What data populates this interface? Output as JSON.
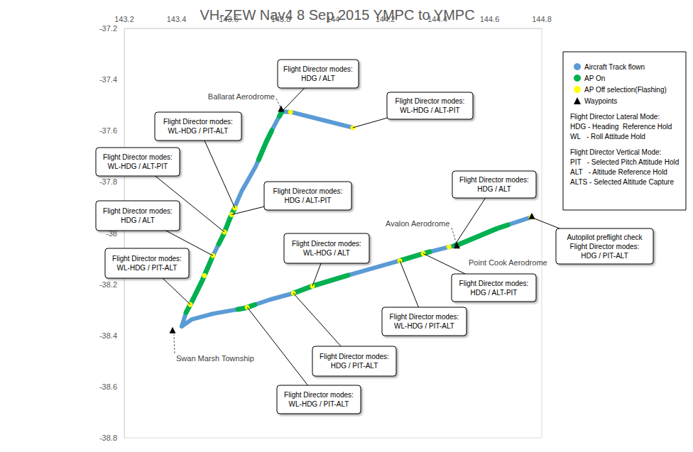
{
  "chart_data": {
    "type": "scatter",
    "title": "VH-ZEW Nav4 8 Sep 2015 YMPC to YMPC",
    "xlim": [
      143.2,
      144.8
    ],
    "xticks": [
      143.2,
      143.4,
      143.6,
      143.8,
      144,
      144.2,
      144.4,
      144.6,
      144.8
    ],
    "ylim": [
      -38.8,
      -37.2
    ],
    "yticks": [
      -38.8,
      -38.6,
      -38.4,
      -38.2,
      -38,
      -37.8,
      -37.6,
      -37.4,
      -37.2
    ],
    "grid": false,
    "series": [
      {
        "name": "Aircraft Track flown",
        "type": "line",
        "color": "#5b9bd5",
        "marker": "circle",
        "x": [
          144.759,
          144.629,
          144.479,
          144.433,
          144.356,
          144.248,
          144.057,
          143.921,
          143.848,
          143.758,
          143.663,
          143.54,
          143.459,
          143.42,
          143.437,
          143.459,
          143.499,
          143.54,
          143.581,
          143.608,
          143.649,
          143.703,
          143.744,
          143.771,
          143.804,
          143.839,
          143.948,
          144.076
        ],
        "values": [
          -37.938,
          -37.982,
          -38.046,
          -38.057,
          -38.077,
          -38.11,
          -38.165,
          -38.207,
          -38.235,
          -38.26,
          -38.293,
          -38.315,
          -38.337,
          -38.365,
          -38.31,
          -38.268,
          -38.185,
          -38.088,
          -38.004,
          -37.935,
          -37.838,
          -37.741,
          -37.644,
          -37.588,
          -37.525,
          -37.527,
          -37.555,
          -37.588
        ]
      },
      {
        "name": "AP On",
        "type": "line",
        "color": "#00b050",
        "marker": "circle",
        "segments": [
          {
            "x": [
              144.465,
              144.479,
              144.629,
              144.67
            ],
            "values": [
              -38.049,
              -38.046,
              -37.982,
              -37.968
            ]
          },
          {
            "x": [
              144.256,
              144.356,
              144.37
            ],
            "values": [
              -38.108,
              -38.077,
              -38.073
            ]
          },
          {
            "x": [
              143.848,
              143.921,
              144.057
            ],
            "values": [
              -38.235,
              -38.207,
              -38.165
            ]
          },
          {
            "x": [
              143.635,
              143.663,
              143.7
            ],
            "values": [
              -38.298,
              -38.293,
              -38.28
            ]
          },
          {
            "x": [
              143.437,
              143.459,
              143.499,
              143.54
            ],
            "values": [
              -38.31,
              -38.268,
              -38.185,
              -38.088
            ]
          },
          {
            "x": [
              143.562,
              143.581,
              143.608,
              143.624
            ],
            "values": [
              -38.043,
              -38.004,
              -37.935,
              -37.902
            ]
          },
          {
            "x": [
              143.715,
              143.744,
              143.765
            ],
            "values": [
              -37.713,
              -37.644,
              -37.6
            ]
          },
          {
            "x": [
              143.795,
              143.804
            ],
            "values": [
              -37.543,
              -37.525
            ]
          }
        ]
      },
      {
        "name": "AP Off selection(Flashing)",
        "type": "scatter",
        "color": "#ffff00",
        "marker": "circle",
        "x": [
          144.759,
          144.444,
          144.346,
          144.256,
          143.921,
          143.848,
          143.671,
          143.453,
          143.507,
          143.54,
          143.584,
          143.611,
          143.624,
          143.837,
          144.076
        ],
        "values": [
          -37.938,
          -38.054,
          -38.08,
          -38.108,
          -38.207,
          -38.235,
          -38.29,
          -38.279,
          -38.166,
          -38.088,
          -37.996,
          -37.928,
          -37.902,
          -37.527,
          -37.588
        ]
      },
      {
        "name": "Waypoints",
        "type": "scatter",
        "color": "#000000",
        "marker": "triangle",
        "x": [
          143.801,
          143.385,
          144.475,
          144.762
        ],
        "values": [
          -37.513,
          -38.379,
          -38.048,
          -37.933
        ],
        "labels": [
          "Ballarat Aerodrome",
          "Swan Marsh Township",
          "Avalon Aerodrome",
          "Point Cook Aerodrome"
        ]
      }
    ],
    "annotations": [
      {
        "text": [
          "Flight Director modes:",
          "HDG / ALT"
        ],
        "x": 143.804,
        "y": -37.525
      },
      {
        "text": [
          "Flight Director modes:",
          "WL-HDG / ALT-PIT"
        ],
        "x": 144.076,
        "y": -37.588
      },
      {
        "text": [
          "Flight Director modes:",
          "WL-HDG / PIT-ALT"
        ],
        "x": 143.624,
        "y": -37.902
      },
      {
        "text": [
          "Flight Director modes:",
          "WL-HDG / ALT-PIT"
        ],
        "x": 143.584,
        "y": -37.996
      },
      {
        "text": [
          "Flight Director modes:",
          "HDG / ALT-PIT"
        ],
        "x": 143.611,
        "y": -37.928
      },
      {
        "text": [
          "Flight Director modes:",
          "HDG / ALT"
        ],
        "x": 143.54,
        "y": -38.088
      },
      {
        "text": [
          "Flight Director modes:",
          "WL-HDG / PIT-ALT"
        ],
        "x": 143.453,
        "y": -38.279
      },
      {
        "text": [
          "Flight Director modes:",
          "WL-HDG / ALT"
        ],
        "x": 143.921,
        "y": -38.207
      },
      {
        "text": [
          "Flight Director modes:",
          "HDG / ALT"
        ],
        "x": 144.465,
        "y": -38.049
      },
      {
        "text": [
          "Flight Director modes:",
          "HDG / ALT-PIT"
        ],
        "x": 144.346,
        "y": -38.08
      },
      {
        "text": [
          "Flight Director modes:",
          "WL-HDG / PIT-ALT"
        ],
        "x": 144.256,
        "y": -38.108
      },
      {
        "text": [
          "Flight Director modes:",
          "HDG / PIT-ALT"
        ],
        "x": 143.848,
        "y": -38.235
      },
      {
        "text": [
          "Flight Director modes:",
          "WL-HDG / PIT-ALT"
        ],
        "x": 143.671,
        "y": -38.29
      },
      {
        "text": [
          "Autopilot preflight check",
          "Flight Director modes:",
          "HDG / PIT-ALT"
        ],
        "x": 144.759,
        "y": -37.938
      }
    ],
    "notes": [
      [
        "Flight Director Lateral Mode:",
        "HDG - Heading  Reference Hold",
        "WL   - Roll Attitude Hold"
      ],
      [
        "Flight Director Vertical Mode:",
        "PIT   - Selected Pitch Attitude Hold",
        "ALT   - Altitude Reference Hold",
        "ALTS - Selected Altitude Capture"
      ]
    ]
  }
}
